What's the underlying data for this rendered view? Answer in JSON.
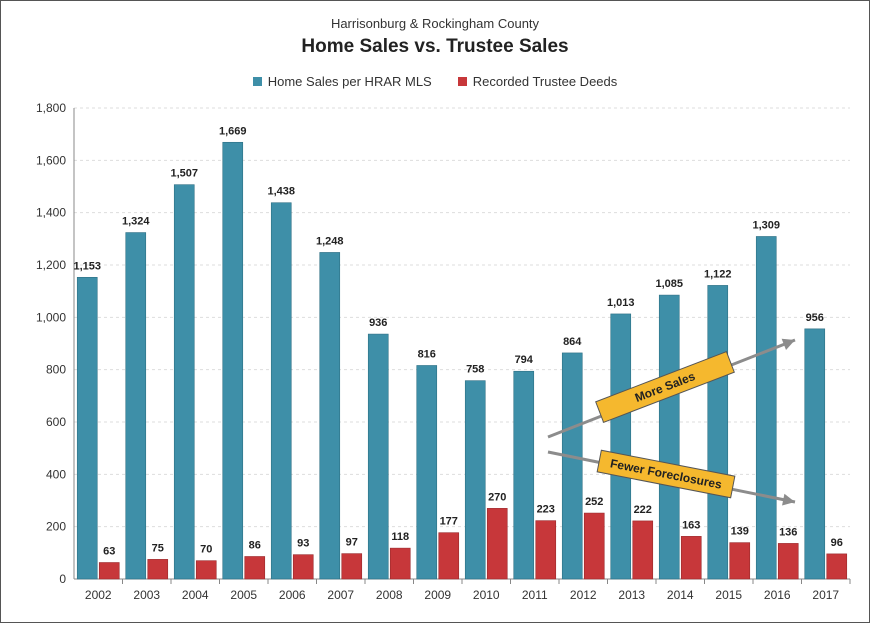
{
  "chart_data": {
    "type": "bar",
    "subtitle": "Harrisonburg & Rockingham County",
    "title": "Home Sales vs. Trustee Sales",
    "categories": [
      "2002",
      "2003",
      "2004",
      "2005",
      "2006",
      "2007",
      "2008",
      "2009",
      "2010",
      "2011",
      "2012",
      "2013",
      "2014",
      "2015",
      "2016",
      "2017"
    ],
    "series": [
      {
        "name": "Home Sales per HRAR MLS",
        "color": "#3E8FA8",
        "values": [
          1153,
          1324,
          1507,
          1669,
          1438,
          1248,
          936,
          816,
          758,
          794,
          864,
          1013,
          1085,
          1122,
          1309,
          956
        ],
        "labels": [
          "1,153",
          "1,324",
          "1,507",
          "1,669",
          "1,438",
          "1,248",
          "936",
          "816",
          "758",
          "794",
          "864",
          "1,013",
          "1,085",
          "1,122",
          "1,309",
          "956"
        ]
      },
      {
        "name": "Recorded Trustee Deeds",
        "color": "#C7373A",
        "values": [
          63,
          75,
          70,
          86,
          93,
          97,
          118,
          177,
          270,
          223,
          252,
          222,
          163,
          139,
          136,
          96
        ],
        "labels": [
          "63",
          "75",
          "70",
          "86",
          "93",
          "97",
          "118",
          "177",
          "270",
          "223",
          "252",
          "222",
          "163",
          "139",
          "136",
          "96"
        ]
      }
    ],
    "ylim": [
      0,
      1800
    ],
    "yticks": [
      0,
      200,
      400,
      600,
      800,
      1000,
      1200,
      1400,
      1600,
      1800
    ],
    "ytick_labels": [
      "0",
      "200",
      "400",
      "600",
      "800",
      "1,000",
      "1,200",
      "1,400",
      "1,600",
      "1,800"
    ],
    "grid": true,
    "legend_position": "top",
    "annotations": [
      {
        "text": "More Sales",
        "fill": "#F5B82E"
      },
      {
        "text": "Fewer Foreclosures",
        "fill": "#F5B82E"
      }
    ]
  }
}
